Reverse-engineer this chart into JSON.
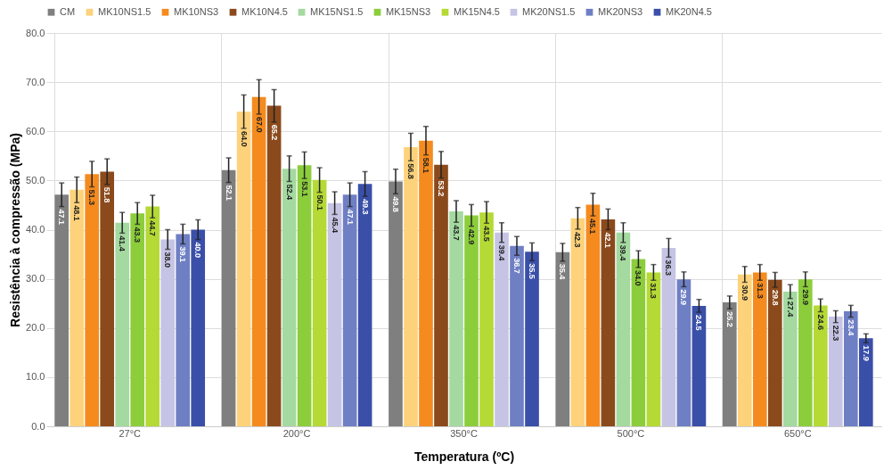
{
  "chart_data": {
    "type": "bar",
    "xlabel": "Temperatura (ºC)",
    "ylabel": "Resistência à compressão (MPa)",
    "categories": [
      "27°C",
      "200°C",
      "350°C",
      "500°C",
      "650°C"
    ],
    "series": [
      {
        "name": "CM",
        "color": "#7f7f7f",
        "values": [
          47.1,
          52.1,
          49.8,
          35.4,
          25.2
        ],
        "errors": [
          2.4,
          2.5,
          2.5,
          1.8,
          1.3
        ],
        "value_labels": [
          "47.1",
          "52.1",
          "49.8",
          "35.4",
          "25.2"
        ]
      },
      {
        "name": "MK10NS1.5",
        "color": "#fdd27a",
        "values": [
          48.1,
          64.0,
          56.8,
          42.3,
          30.9
        ],
        "errors": [
          2.6,
          3.4,
          2.8,
          2.2,
          1.6
        ],
        "value_labels": [
          "48.1",
          "64.0",
          "56.8",
          "42.3",
          "30.9"
        ]
      },
      {
        "name": "MK10NS3",
        "color": "#f58b1f",
        "values": [
          51.3,
          67.0,
          58.1,
          45.1,
          31.3
        ],
        "errors": [
          2.6,
          3.5,
          2.9,
          2.3,
          1.6
        ],
        "value_labels": [
          "51.3",
          "67.0",
          "58.1",
          "45.1",
          "31.3"
        ]
      },
      {
        "name": "MK10N4.5",
        "color": "#8b4a1c",
        "values": [
          51.8,
          65.2,
          53.2,
          42.1,
          29.8
        ],
        "errors": [
          2.6,
          3.3,
          2.7,
          2.1,
          1.5
        ],
        "value_labels": [
          "51.8",
          "65.2",
          "53.2",
          "42.1",
          "29.8"
        ]
      },
      {
        "name": "MK15NS1.5",
        "color": "#a4d9a0",
        "values": [
          41.4,
          52.4,
          43.7,
          39.4,
          27.4
        ],
        "errors": [
          2.1,
          2.6,
          2.2,
          2.0,
          1.4
        ],
        "value_labels": [
          "41.4",
          "52.4",
          "43.7",
          "39.4",
          "27.4"
        ]
      },
      {
        "name": "MK15NS3",
        "color": "#8ccd3c",
        "values": [
          43.3,
          53.1,
          42.9,
          34.0,
          29.9
        ],
        "errors": [
          2.2,
          2.7,
          2.2,
          1.7,
          1.5
        ],
        "value_labels": [
          "43.3",
          "53.1",
          "42.9",
          "34.0",
          "29.9"
        ]
      },
      {
        "name": "MK15N4.5",
        "color": "#b5d935",
        "values": [
          44.7,
          50.1,
          43.5,
          31.3,
          24.6
        ],
        "errors": [
          2.3,
          2.5,
          2.2,
          1.6,
          1.3
        ],
        "value_labels": [
          "44.7",
          "50.1",
          "43.5",
          "31.3",
          "24.6"
        ]
      },
      {
        "name": "MK20NS1.5",
        "color": "#c6c4e4",
        "values": [
          38.0,
          45.4,
          39.4,
          36.3,
          22.3
        ],
        "errors": [
          2.0,
          2.3,
          2.0,
          1.9,
          1.2
        ],
        "value_labels": [
          "38.0",
          "45.4",
          "39.4",
          "36.3",
          "22.3"
        ]
      },
      {
        "name": "MK20NS3",
        "color": "#6f7fc4",
        "values": [
          39.1,
          47.1,
          36.7,
          29.9,
          23.4
        ],
        "errors": [
          2.0,
          2.4,
          1.9,
          1.5,
          1.2
        ],
        "value_labels": [
          "39.1",
          "47.1",
          "36.7",
          "29.9",
          "23.4"
        ]
      },
      {
        "name": "MK20N4.5",
        "color": "#3a4fa8",
        "values": [
          40.0,
          49.3,
          35.5,
          24.5,
          17.9
        ],
        "errors": [
          2.0,
          2.5,
          1.8,
          1.3,
          0.9
        ],
        "value_labels": [
          "40.0",
          "49.3",
          "35.5",
          "24.5",
          "17.9"
        ]
      }
    ],
    "ylim": [
      0,
      80
    ],
    "yticks": [
      {
        "value": 0,
        "label": "0.0"
      },
      {
        "value": 10,
        "label": "10.0"
      },
      {
        "value": 20,
        "label": "20.0"
      },
      {
        "value": 30,
        "label": "30.0"
      },
      {
        "value": 40,
        "label": "40.0"
      },
      {
        "value": 50,
        "label": "50.0"
      },
      {
        "value": 60,
        "label": "60.0"
      },
      {
        "value": 70,
        "label": "70.0"
      },
      {
        "value": 80,
        "label": "80.0"
      }
    ],
    "grid": true,
    "legend": "top"
  }
}
